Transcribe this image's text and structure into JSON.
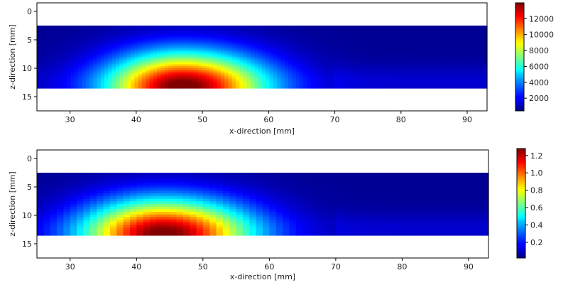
{
  "chart_data": [
    {
      "type": "heatmap",
      "xlabel": "x-direction [mm]",
      "ylabel": "z-direction [mm]",
      "xlim": [
        25,
        93
      ],
      "ylim": [
        17.5,
        -1.5
      ],
      "data_extent": {
        "x": [
          25,
          93
        ],
        "z": [
          2.5,
          13.5
        ]
      },
      "xticks": [
        30,
        40,
        50,
        60,
        70,
        80,
        90
      ],
      "yticks": [
        0,
        5,
        10,
        15
      ],
      "colormap": "jet",
      "colorbar": {
        "min": 400,
        "max": 14000,
        "ticks": [
          2000,
          4000,
          6000,
          8000,
          10000,
          12000
        ]
      },
      "peak": {
        "x": 47,
        "z": 13.5,
        "value": 13800
      },
      "lobe": {
        "x_start": 28,
        "x_end": 66,
        "z_top": 3.5
      }
    },
    {
      "type": "heatmap",
      "xlabel": "x-direction [mm]",
      "ylabel": "z-direction [mm]",
      "xlim": [
        25,
        93
      ],
      "ylim": [
        17.5,
        -1.5
      ],
      "data_extent": {
        "x": [
          25,
          93
        ],
        "z": [
          2.5,
          13.5
        ]
      },
      "xticks": [
        30,
        40,
        50,
        60,
        70,
        80,
        90
      ],
      "yticks": [
        0,
        5,
        10,
        15
      ],
      "colormap": "jet",
      "colorbar": {
        "min": 0.02,
        "max": 1.28,
        "ticks": [
          0.2,
          0.4,
          0.6,
          0.8,
          1.0,
          1.2
        ]
      },
      "peak": {
        "x": 43,
        "z": 13.5,
        "value": 1.25
      },
      "lobe": {
        "x_start": 28,
        "x_end": 68,
        "z_top": 3.5
      }
    }
  ]
}
